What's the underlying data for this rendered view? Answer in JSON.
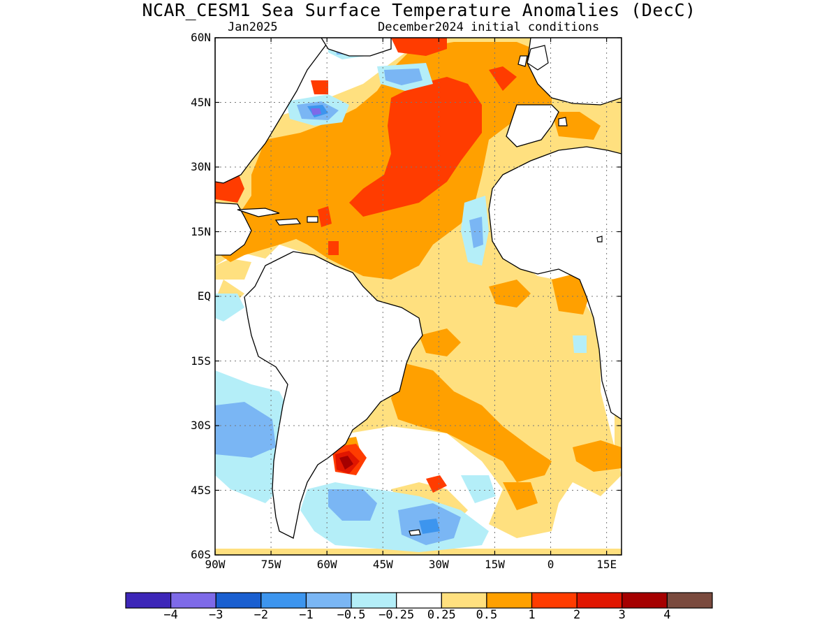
{
  "title": "NCAR_CESM1 Sea Surface Temperature Anomalies (DecC)",
  "subtitle_left": "Jan2025",
  "subtitle_right": "December2024 initial conditions",
  "map": {
    "lon_range": [
      -90,
      19
    ],
    "lat_range": [
      -60,
      60
    ],
    "grid": "dotted",
    "lat_ticks": [
      {
        "value": 60,
        "label": "60N"
      },
      {
        "value": 45,
        "label": "45N"
      },
      {
        "value": 30,
        "label": "30N"
      },
      {
        "value": 15,
        "label": "15N"
      },
      {
        "value": 0,
        "label": "EQ"
      },
      {
        "value": -15,
        "label": "15S"
      },
      {
        "value": -30,
        "label": "30S"
      },
      {
        "value": -45,
        "label": "45S"
      },
      {
        "value": -60,
        "label": "60S"
      }
    ],
    "lon_ticks": [
      {
        "value": -90,
        "label": "90W"
      },
      {
        "value": -75,
        "label": "75W"
      },
      {
        "value": -60,
        "label": "60W"
      },
      {
        "value": -45,
        "label": "45W"
      },
      {
        "value": -30,
        "label": "30W"
      },
      {
        "value": -15,
        "label": "15W"
      },
      {
        "value": 0,
        "label": "0"
      },
      {
        "value": 15,
        "label": "15E"
      }
    ]
  },
  "colorbar": {
    "colors": [
      "#3d26b8",
      "#7e6ae8",
      "#1a5fd0",
      "#3d95ee",
      "#7ab6f4",
      "#b4eef8",
      "#ffffff",
      "#ffe07f",
      "#ffa000",
      "#ff3c00",
      "#e11600",
      "#a50000",
      "#7a4a3e"
    ],
    "labels": [
      "-4",
      "-3",
      "-2",
      "-1",
      "-0.5",
      "-0.25",
      "0.25",
      "0.5",
      "1",
      "2",
      "3",
      "4"
    ]
  }
}
